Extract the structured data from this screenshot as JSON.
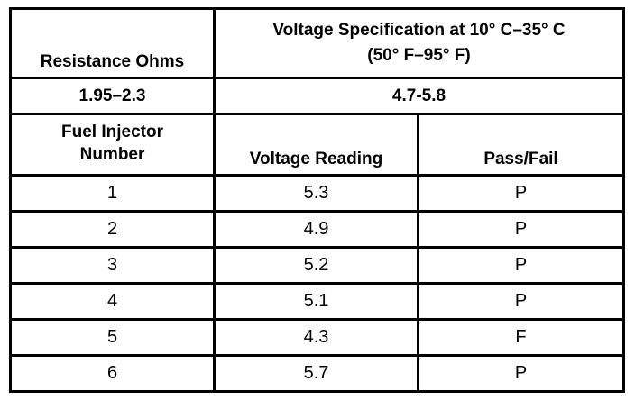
{
  "table": {
    "header": {
      "resistance": "Resistance Ohms",
      "voltage_spec": [
        "Voltage Specification at 10° C–35° C",
        "(50° F–95° F)"
      ]
    },
    "spec_row": [
      "1.95–2.3",
      "4.7-5.8"
    ],
    "column_headers": [
      "Fuel Injector Number",
      "Voltage Reading",
      "Pass/Fail"
    ],
    "rows": [
      [
        1,
        5.3,
        "P"
      ],
      [
        2,
        4.9,
        "P"
      ],
      [
        3,
        5.2,
        "P"
      ],
      [
        4,
        5.1,
        "P"
      ],
      [
        5,
        4.3,
        "F"
      ],
      [
        6,
        5.7,
        "P"
      ]
    ]
  }
}
